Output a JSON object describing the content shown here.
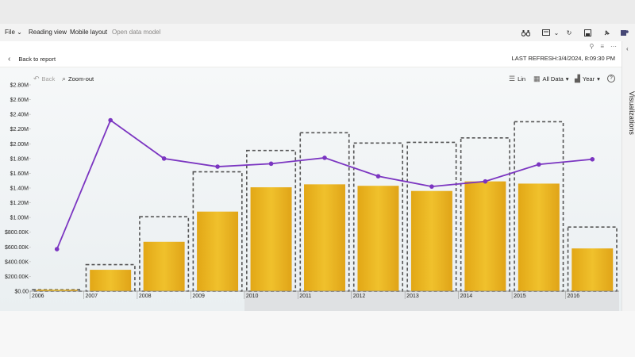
{
  "menubar": {
    "file_label": "File",
    "reading_view": "Reading view",
    "mobile_layout": "Mobile layout",
    "open_data_model": "Open data model"
  },
  "toolbar_icons": [
    "binoculars-icon",
    "view-icon",
    "chevron-down-icon",
    "refresh-icon",
    "save-icon",
    "pin-icon",
    "teams-icon"
  ],
  "header": {
    "back_label": "Back to report",
    "last_refresh": "LAST REFRESH:3/4/2024, 8:09:30 PM"
  },
  "visualizations_pane": {
    "label": "Visualizations"
  },
  "chart_toolbar": {
    "back_label": "Back",
    "zoom_out_label": "Zoom-out",
    "lin_label": "Lin",
    "all_data_label": "All Data",
    "year_label": "Year"
  },
  "colors": {
    "bar": "#e8b422",
    "line": "#7b35c1",
    "target_outline": "#555555"
  },
  "chart_data": {
    "type": "bar",
    "categories": [
      "2006",
      "2007",
      "2008",
      "2009",
      "2010",
      "2011",
      "2012",
      "2013",
      "2014",
      "2015",
      "2016"
    ],
    "series": [
      {
        "type": "bar",
        "values": [
          0.02,
          0.29,
          0.67,
          1.08,
          1.41,
          1.45,
          1.43,
          1.36,
          1.49,
          1.46,
          0.58
        ]
      },
      {
        "type": "target",
        "values": [
          0.02,
          0.36,
          1.01,
          1.62,
          1.91,
          2.15,
          2.01,
          2.02,
          2.08,
          2.3,
          0.87
        ]
      },
      {
        "type": "line",
        "values": [
          0.57,
          2.32,
          1.8,
          1.69,
          1.73,
          1.81,
          1.56,
          1.42,
          1.49,
          1.72,
          1.79
        ]
      }
    ],
    "y_ticks": [
      "$0.00",
      "$200.00K",
      "$400.00K",
      "$600.00K",
      "$800.00K",
      "$1.00M",
      "$1.20M",
      "$1.40M",
      "$1.60M",
      "$1.80M",
      "$2.00M",
      "$2.20M",
      "$2.40M",
      "$2.60M",
      "$2.80M"
    ],
    "ylim": [
      0,
      2.8
    ],
    "title": "",
    "xlabel": "",
    "ylabel": ""
  }
}
